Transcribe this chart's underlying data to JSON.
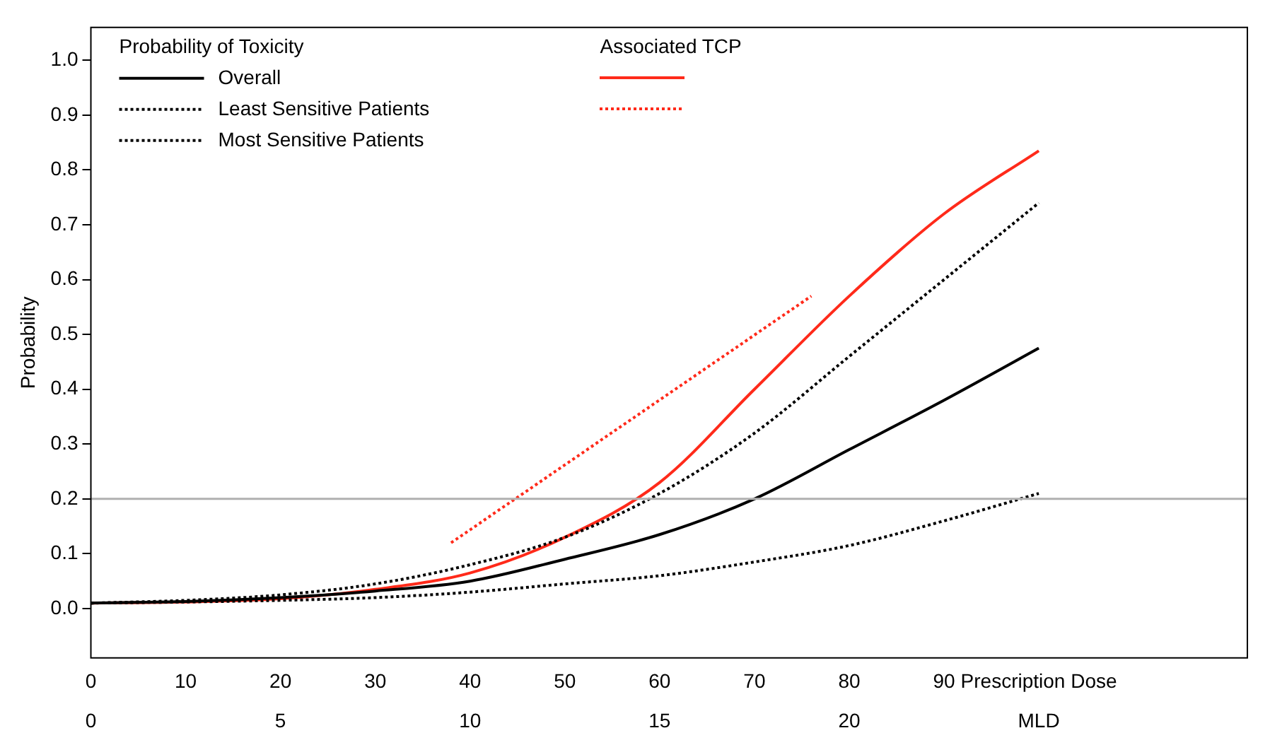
{
  "chart_data": {
    "type": "line",
    "ylabel": "Probability",
    "xlabel": "Prescription Dose",
    "x2label": "MLD",
    "legend_title": "Probability of Toxicity",
    "annotations": [
      "Associated TCP"
    ],
    "legend": "top left",
    "grid": false,
    "marker": "none",
    "xlim": [
      0,
      122
    ],
    "xticks": [
      0,
      10,
      20,
      30,
      40,
      50,
      60,
      70,
      80,
      90
    ],
    "x2lim": [
      0,
      30.5
    ],
    "x2ticks": [
      0,
      5,
      10,
      15,
      20
    ],
    "ylim": [
      -0.09,
      1.06
    ],
    "yticks": [
      {
        "value": 0,
        "label": "0.0"
      },
      {
        "value": 0.1,
        "label": "0.1"
      },
      {
        "value": 0.2,
        "label": "0.2"
      },
      {
        "value": 0.3,
        "label": "0.3"
      },
      {
        "value": 0.4,
        "label": "0.4"
      },
      {
        "value": 0.5,
        "label": "0.5"
      },
      {
        "value": 0.6,
        "label": "0.6"
      },
      {
        "value": 0.7,
        "label": "0.7"
      },
      {
        "value": 0.8,
        "label": "0.8"
      },
      {
        "value": 0.9,
        "label": "0.9"
      },
      {
        "value": 1,
        "label": "1.0"
      }
    ],
    "ref_lines": [
      {
        "axis": "y",
        "value": 0.2,
        "color": "#b0b0b0"
      }
    ],
    "series": [
      {
        "name": "Overall",
        "color": "#000000",
        "line_style": "solid",
        "x": [
          0,
          10,
          20,
          30,
          40,
          50,
          60,
          70,
          80,
          90,
          100
        ],
        "values": [
          0.01,
          0.013,
          0.02,
          0.032,
          0.05,
          0.09,
          0.135,
          0.2,
          0.29,
          0.38,
          0.475
        ]
      },
      {
        "name": "Least Sensitive Patients",
        "color": "#000000",
        "line_style": "dotted",
        "x": [
          0,
          10,
          20,
          30,
          40,
          50,
          60,
          70,
          80,
          90,
          100
        ],
        "values": [
          0.01,
          0.012,
          0.015,
          0.02,
          0.03,
          0.045,
          0.06,
          0.085,
          0.115,
          0.16,
          0.21
        ]
      },
      {
        "name": "Most Sensitive Patients",
        "color": "#000000",
        "line_style": "dotted",
        "x": [
          0,
          10,
          20,
          30,
          40,
          50,
          60,
          70,
          80,
          90,
          100
        ],
        "values": [
          0.01,
          0.015,
          0.025,
          0.045,
          0.08,
          0.13,
          0.21,
          0.32,
          0.46,
          0.6,
          0.74
        ]
      },
      {
        "color": "#ff2a1a",
        "line_style": "solid",
        "x": [
          0,
          10,
          20,
          30,
          40,
          50,
          60,
          70,
          80,
          90,
          100
        ],
        "values": [
          0.01,
          0.012,
          0.018,
          0.035,
          0.065,
          0.13,
          0.23,
          0.4,
          0.57,
          0.72,
          0.835
        ]
      },
      {
        "color": "#ff2a1a",
        "line_style": "dotted",
        "x": [
          38,
          76
        ],
        "values": [
          0.12,
          0.57
        ]
      }
    ]
  }
}
